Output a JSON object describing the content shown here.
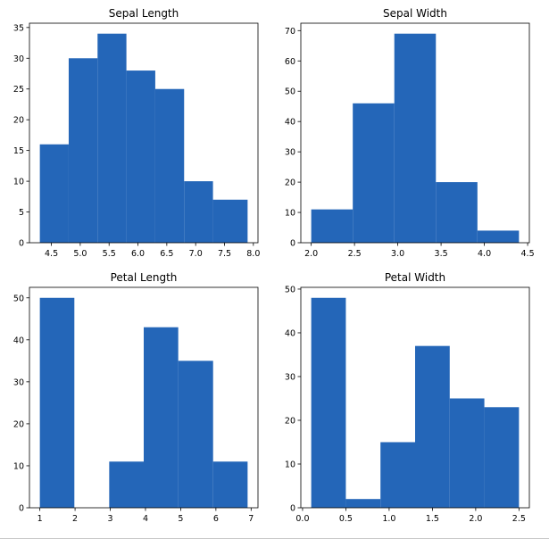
{
  "chart_data": [
    {
      "type": "bar",
      "title": "Sepal Length",
      "bar_color": "#2466b8",
      "bins": [
        {
          "x0": 4.3,
          "x1": 4.8,
          "count": 16
        },
        {
          "x0": 4.8,
          "x1": 5.3,
          "count": 30
        },
        {
          "x0": 5.3,
          "x1": 5.8,
          "count": 34
        },
        {
          "x0": 5.8,
          "x1": 6.3,
          "count": 28
        },
        {
          "x0": 6.3,
          "x1": 6.8,
          "count": 25
        },
        {
          "x0": 6.8,
          "x1": 7.3,
          "count": 10
        },
        {
          "x0": 7.3,
          "x1": 7.9,
          "count": 7
        }
      ],
      "xlim": [
        4.12,
        8.08
      ],
      "ylim": [
        0,
        35.7
      ],
      "xticks": [
        "4.5",
        "5.0",
        "5.5",
        "6.0",
        "6.5",
        "7.0",
        "7.5",
        "8.0"
      ],
      "yticks": [
        "0",
        "5",
        "10",
        "15",
        "20",
        "25",
        "30",
        "35"
      ]
    },
    {
      "type": "bar",
      "title": "Sepal Width",
      "bar_color": "#2466b8",
      "bins": [
        {
          "x0": 2.0,
          "x1": 2.48,
          "count": 11
        },
        {
          "x0": 2.48,
          "x1": 2.96,
          "count": 46
        },
        {
          "x0": 2.96,
          "x1": 3.44,
          "count": 69
        },
        {
          "x0": 3.44,
          "x1": 3.92,
          "count": 20
        },
        {
          "x0": 3.92,
          "x1": 4.4,
          "count": 4
        }
      ],
      "xlim": [
        1.88,
        4.52
      ],
      "ylim": [
        0,
        72.45
      ],
      "xticks": [
        "2.0",
        "2.5",
        "3.0",
        "3.5",
        "4.0",
        "4.5"
      ],
      "yticks": [
        "0",
        "10",
        "20",
        "30",
        "40",
        "50",
        "60",
        "70"
      ]
    },
    {
      "type": "bar",
      "title": "Petal Length",
      "bar_color": "#2466b8",
      "bins": [
        {
          "x0": 1.0,
          "x1": 1.98,
          "count": 50
        },
        {
          "x0": 1.98,
          "x1": 2.97,
          "count": 0
        },
        {
          "x0": 2.97,
          "x1": 3.95,
          "count": 11
        },
        {
          "x0": 3.95,
          "x1": 4.93,
          "count": 43
        },
        {
          "x0": 4.93,
          "x1": 5.92,
          "count": 35
        },
        {
          "x0": 5.92,
          "x1": 6.9,
          "count": 11
        }
      ],
      "xlim": [
        0.705,
        7.195
      ],
      "ylim": [
        0,
        52.5
      ],
      "xticks": [
        "1",
        "2",
        "3",
        "4",
        "5",
        "6",
        "7"
      ],
      "yticks": [
        "0",
        "10",
        "20",
        "30",
        "40",
        "50"
      ]
    },
    {
      "type": "bar",
      "title": "Petal Width",
      "bar_color": "#2466b8",
      "bins": [
        {
          "x0": 0.1,
          "x1": 0.5,
          "count": 48
        },
        {
          "x0": 0.5,
          "x1": 0.9,
          "count": 2
        },
        {
          "x0": 0.9,
          "x1": 1.3,
          "count": 15
        },
        {
          "x0": 1.3,
          "x1": 1.7,
          "count": 37
        },
        {
          "x0": 1.7,
          "x1": 2.1,
          "count": 25
        },
        {
          "x0": 2.1,
          "x1": 2.5,
          "count": 23
        }
      ],
      "xlim": [
        -0.02,
        2.62
      ],
      "ylim": [
        0,
        50.4
      ],
      "xticks": [
        "0.0",
        "0.5",
        "1.0",
        "1.5",
        "2.0",
        "2.5"
      ],
      "yticks": [
        "0",
        "10",
        "20",
        "30",
        "40",
        "50"
      ]
    }
  ]
}
